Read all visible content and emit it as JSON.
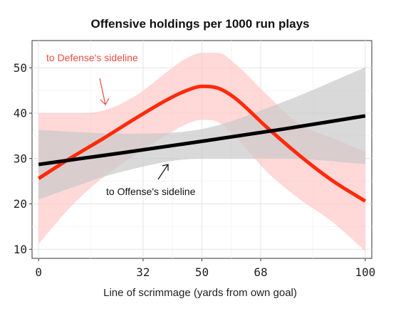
{
  "chart_data": {
    "type": "line",
    "title": "Offensive holdings per 1000 run plays",
    "xlabel": "Line of scrimmage (yards from own goal)",
    "ylabel": "",
    "xlim": [
      -2,
      102
    ],
    "ylim": [
      8,
      56
    ],
    "xticks": [
      0,
      32,
      50,
      68,
      100
    ],
    "yticks": [
      10,
      20,
      30,
      40,
      50
    ],
    "grid": true,
    "series": [
      {
        "key": "defense",
        "color": "#ff2a0a",
        "band_color": "#ffc7c7",
        "x": [
          0,
          10,
          20,
          30,
          40,
          45,
          50,
          55,
          60,
          70,
          80,
          90,
          100
        ],
        "y": [
          25.6,
          30.2,
          34.5,
          39.0,
          43.2,
          44.9,
          45.9,
          45.5,
          43.4,
          36.8,
          30.6,
          25.1,
          20.6
        ],
        "lower": [
          11.2,
          19.5,
          26.0,
          31.0,
          35.5,
          37.5,
          38.5,
          38.0,
          35.0,
          27.0,
          21.0,
          16.0,
          9.6
        ],
        "upper": [
          40.0,
          40.0,
          40.6,
          44.0,
          49.5,
          52.0,
          53.3,
          53.3,
          51.0,
          44.0,
          37.5,
          34.5,
          31.5
        ]
      },
      {
        "key": "offense",
        "color": "#000000",
        "band_color": "#c9c9c9",
        "x": [
          0,
          25,
          50,
          75,
          100
        ],
        "y": [
          28.7,
          31.2,
          33.8,
          36.5,
          39.4
        ],
        "lower": [
          21.0,
          27.0,
          30.0,
          30.0,
          28.8
        ],
        "upper": [
          36.3,
          35.5,
          36.5,
          42.5,
          50.1
        ]
      }
    ],
    "annotations": [
      {
        "key": "defense",
        "text": "to Defense's sideline",
        "color": "#ee4a40"
      },
      {
        "key": "offense",
        "text": "to Offense's sideline",
        "color": "#111111"
      }
    ]
  }
}
